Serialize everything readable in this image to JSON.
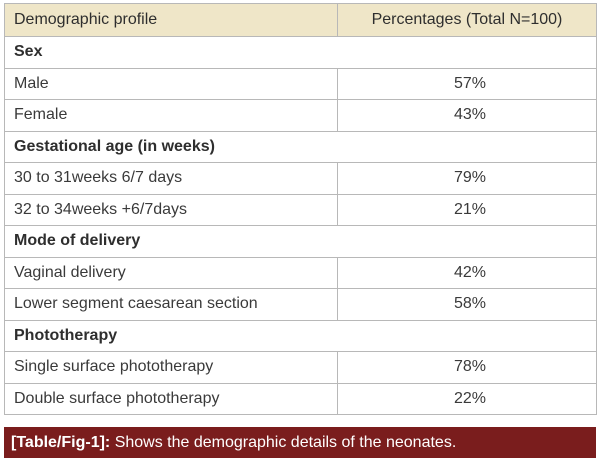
{
  "table": {
    "headers": [
      "Demographic profile",
      "Percentages (Total N=100)"
    ],
    "sections": [
      {
        "title": "Sex",
        "rows": [
          {
            "label": "Male",
            "value": "57%"
          },
          {
            "label": "Female",
            "value": "43%"
          }
        ]
      },
      {
        "title": "Gestational age (in weeks)",
        "rows": [
          {
            "label": "30 to 31weeks 6/7 days",
            "value": "79%"
          },
          {
            "label": "32 to 34weeks +6/7days",
            "value": "21%"
          }
        ]
      },
      {
        "title": "Mode of delivery",
        "rows": [
          {
            "label": "Vaginal delivery",
            "value": "42%"
          },
          {
            "label": "Lower segment caesarean section",
            "value": "58%"
          }
        ]
      },
      {
        "title": "Phototherapy",
        "rows": [
          {
            "label": "Single surface phototherapy",
            "value": "78%"
          },
          {
            "label": "Double surface phototherapy",
            "value": "22%"
          }
        ]
      }
    ]
  },
  "caption": {
    "ref": "[Table/Fig-1]:",
    "text": "Shows the demographic details of the neonates."
  },
  "colors": {
    "header_bg": "#efe6c8",
    "caption_bg": "#7a1d1d",
    "border": "#b8b8b8"
  }
}
